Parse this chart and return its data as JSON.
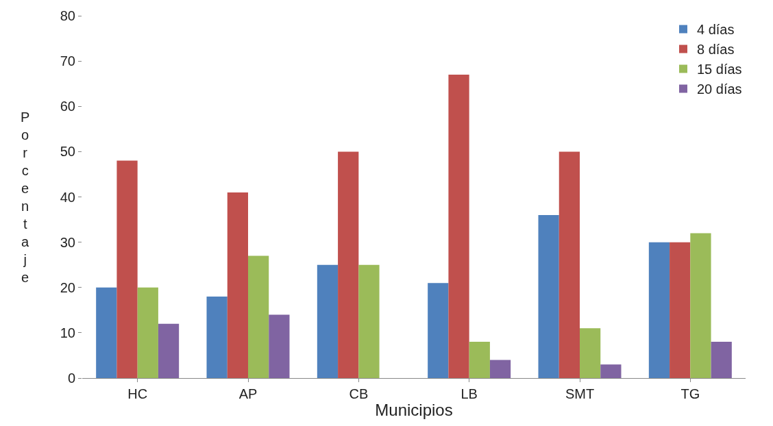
{
  "chart_data": {
    "type": "bar",
    "xlabel": "Municipios",
    "ylabel": "Porcentaje",
    "categories": [
      "HC",
      "AP",
      "CB",
      "LB",
      "SMT",
      "TG"
    ],
    "series": [
      {
        "name": "4 días",
        "color": "#4f81bd",
        "values": [
          20,
          18,
          25,
          21,
          36,
          30
        ]
      },
      {
        "name": "8 días",
        "color": "#c0504d",
        "values": [
          48,
          41,
          50,
          67,
          50,
          30
        ]
      },
      {
        "name": "15 días",
        "color": "#9bbb59",
        "values": [
          20,
          27,
          25,
          8,
          11,
          32
        ]
      },
      {
        "name": "20 días",
        "color": "#8064a2",
        "values": [
          12,
          14,
          0,
          4,
          3,
          8
        ]
      }
    ],
    "ylim": [
      0,
      80
    ],
    "yticks": [
      0,
      10,
      20,
      30,
      40,
      50,
      60,
      70,
      80
    ],
    "legend": "top right"
  }
}
